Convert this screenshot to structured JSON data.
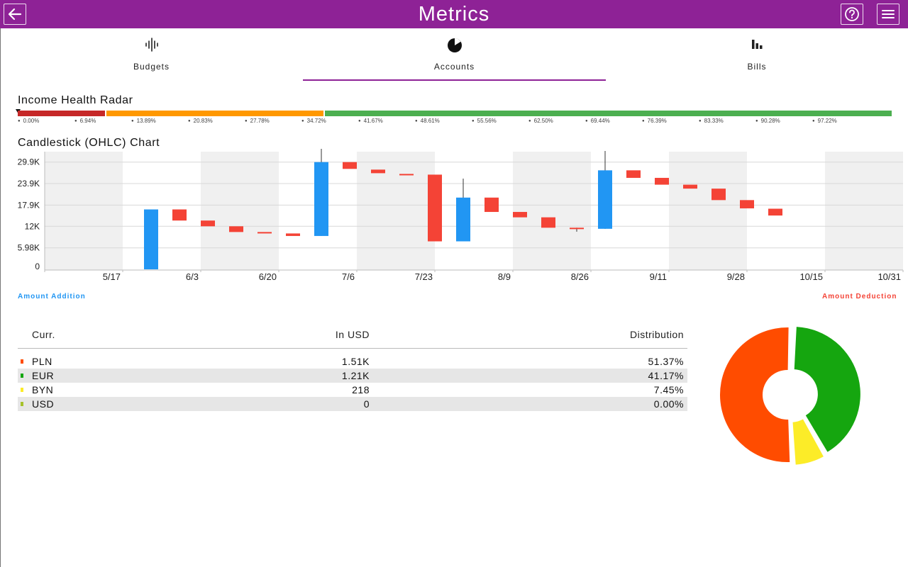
{
  "app": {
    "title": "Metrics"
  },
  "icons": {
    "back": "arrow-left-icon",
    "help": "question-circle-icon",
    "menu": "hamburger-menu-icon"
  },
  "tabs": [
    {
      "label": "Budgets",
      "icon": "waveform-icon"
    },
    {
      "label": "Accounts",
      "icon": "pie-icon",
      "selected": true
    },
    {
      "label": "Bills",
      "icon": "bar-chart-icon"
    }
  ],
  "radar": {
    "title": "Income Health Radar",
    "segment_colors": [
      "#c62828",
      "#ff9800",
      "#4caf50"
    ],
    "ticks": [
      "0.00%",
      "6.94%",
      "13.89%",
      "20.83%",
      "27.78%",
      "34.72%",
      "41.67%",
      "48.61%",
      "55.56%",
      "62.50%",
      "69.44%",
      "76.39%",
      "83.33%",
      "90.28%",
      "97.22%"
    ]
  },
  "candlestick": {
    "title": "Candlestick (OHLC) Chart",
    "legend_addition": "Amount Addition",
    "legend_deduction": "Amount Deduction",
    "colors": {
      "addition": "#2196f3",
      "deduction": "#f44336"
    }
  },
  "chart_data": {
    "type": "candlestick",
    "y_ticks": [
      "0",
      "5.98K",
      "12K",
      "17.9K",
      "23.9K",
      "29.9K"
    ],
    "ylim": [
      0,
      33000
    ],
    "x_ticks": [
      "5/17",
      "6/3",
      "6/20",
      "7/6",
      "7/23",
      "8/9",
      "8/26",
      "9/11",
      "9/28",
      "10/15",
      "10/31"
    ],
    "candles": [
      {
        "dir": "up",
        "open": 0,
        "close": 16700,
        "high": 16700,
        "low": 0
      },
      {
        "dir": "down",
        "open": 16700,
        "close": 13600,
        "high": 16700,
        "low": 13600
      },
      {
        "dir": "down",
        "open": 13600,
        "close": 12000,
        "high": 13600,
        "low": 12000
      },
      {
        "dir": "down",
        "open": 12000,
        "close": 10400,
        "high": 12000,
        "low": 10400
      },
      {
        "dir": "down",
        "open": 10400,
        "close": 10000,
        "high": 10400,
        "low": 10000
      },
      {
        "dir": "down",
        "open": 10000,
        "close": 9300,
        "high": 10000,
        "low": 9300
      },
      {
        "dir": "up",
        "open": 9300,
        "close": 29900,
        "high": 34000,
        "low": 9300
      },
      {
        "dir": "down",
        "open": 29900,
        "close": 28000,
        "high": 29900,
        "low": 28000
      },
      {
        "dir": "down",
        "open": 27800,
        "close": 26800,
        "high": 27800,
        "low": 26800
      },
      {
        "dir": "down",
        "open": 26600,
        "close": 26200,
        "high": 26600,
        "low": 26200
      },
      {
        "dir": "down",
        "open": 26400,
        "close": 7800,
        "high": 26400,
        "low": 7800
      },
      {
        "dir": "up",
        "open": 7800,
        "close": 20000,
        "high": 25300,
        "low": 7800
      },
      {
        "dir": "down",
        "open": 20000,
        "close": 16000,
        "high": 20000,
        "low": 16000
      },
      {
        "dir": "down",
        "open": 16000,
        "close": 14500,
        "high": 16000,
        "low": 14500
      },
      {
        "dir": "down",
        "open": 14500,
        "close": 11600,
        "high": 14500,
        "low": 11600
      },
      {
        "dir": "down",
        "open": 11600,
        "close": 11300,
        "high": 11600,
        "low": 10500
      },
      {
        "dir": "up",
        "open": 11300,
        "close": 27600,
        "high": 33000,
        "low": 11300
      },
      {
        "dir": "down",
        "open": 27600,
        "close": 25500,
        "high": 27600,
        "low": 25500
      },
      {
        "dir": "down",
        "open": 25500,
        "close": 23600,
        "high": 25500,
        "low": 23600
      },
      {
        "dir": "down",
        "open": 23600,
        "close": 22500,
        "high": 23600,
        "low": 22500
      },
      {
        "dir": "down",
        "open": 22500,
        "close": 19300,
        "high": 22500,
        "low": 19300
      },
      {
        "dir": "down",
        "open": 19300,
        "close": 17000,
        "high": 19300,
        "low": 17000
      },
      {
        "dir": "down",
        "open": 16900,
        "close": 15000,
        "high": 16900,
        "low": 15000
      }
    ]
  },
  "distribution": {
    "headers": {
      "currency": "Curr.",
      "usd": "In USD",
      "dist": "Distribution"
    },
    "rows": [
      {
        "currency": "PLN",
        "usd": "1.51K",
        "dist": "51.37%",
        "color": "#ff4c00",
        "share": 51.37
      },
      {
        "currency": "EUR",
        "usd": "1.21K",
        "dist": "41.17%",
        "color": "#15a60f",
        "share": 41.17
      },
      {
        "currency": "BYN",
        "usd": "218",
        "dist": "7.45%",
        "color": "#fcec28",
        "share": 7.45
      },
      {
        "currency": "USD",
        "usd": "0",
        "dist": "0.00%",
        "color": "#a6c22b",
        "share": 0
      }
    ]
  }
}
